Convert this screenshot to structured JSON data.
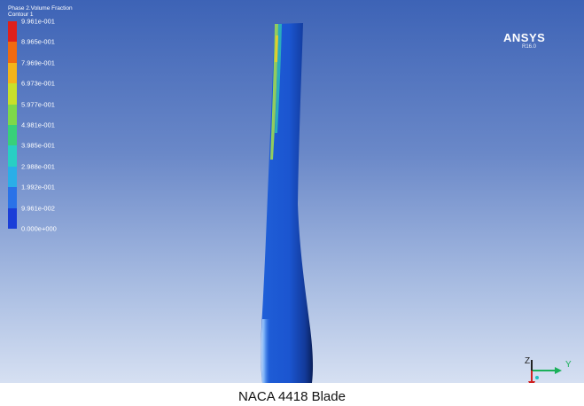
{
  "legend": {
    "title_line1": "Phase 2.Volume Fraction",
    "title_line2": "Contour 1",
    "ticks": [
      "9.961e-001",
      "8.965e-001",
      "7.969e-001",
      "6.973e-001",
      "5.977e-001",
      "4.981e-001",
      "3.985e-001",
      "2.988e-001",
      "1.992e-001",
      "9.961e-002",
      "0.000e+000"
    ],
    "colors": [
      "#e0201a",
      "#f06a10",
      "#f3b41a",
      "#c8e02a",
      "#7ed84a",
      "#38d07a",
      "#28cfc4",
      "#2aaee8",
      "#2a72e8",
      "#1a3ed8"
    ]
  },
  "brand": {
    "name": "ANSYS",
    "version": "R16.0"
  },
  "caption": "NACA 4418 Blade",
  "triad": {
    "y_label": "Y",
    "z_label": "Z",
    "x_label": "X",
    "y_color": "#1bb05a",
    "z_color": "#222222",
    "x_color": "#d02020"
  }
}
